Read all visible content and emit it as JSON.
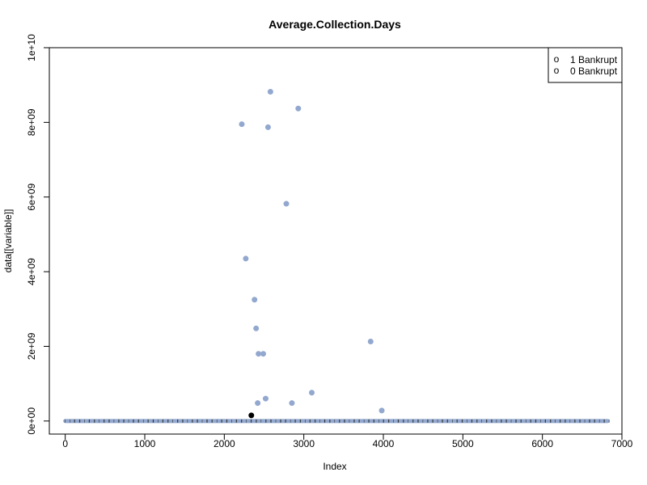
{
  "chart_data": {
    "type": "scatter",
    "title": "Average.Collection.Days",
    "xlabel": "Index",
    "ylabel": "data[[variable]]",
    "xlim": [
      -200,
      7000
    ],
    "ylim": [
      -350000000,
      10000000000
    ],
    "x_ticks": [
      0,
      1000,
      2000,
      3000,
      4000,
      5000,
      6000,
      7000
    ],
    "x_tick_labels": [
      "0",
      "1000",
      "2000",
      "3000",
      "4000",
      "5000",
      "6000",
      "7000"
    ],
    "y_ticks": [
      0,
      2000000000,
      4000000000,
      6000000000,
      8000000000,
      10000000000
    ],
    "y_tick_labels": [
      "0e+00",
      "2e+09",
      "4e+09",
      "6e+09",
      "8e+09",
      "1e+10"
    ],
    "grid": false,
    "legend_position": "top-right",
    "legend_symbol": "o",
    "series": [
      {
        "name": "0 Bankrupt",
        "color": "#92a8cf",
        "baseline_range": [
          0,
          6820
        ],
        "baseline_value": 0,
        "points": [
          {
            "x": 2220,
            "y": 7950000000
          },
          {
            "x": 2270,
            "y": 4350000000
          },
          {
            "x": 2380,
            "y": 3250000000
          },
          {
            "x": 2400,
            "y": 2480000000
          },
          {
            "x": 2430,
            "y": 1800000000
          },
          {
            "x": 2490,
            "y": 1800000000
          },
          {
            "x": 2420,
            "y": 480000000
          },
          {
            "x": 2520,
            "y": 600000000
          },
          {
            "x": 2550,
            "y": 7870000000
          },
          {
            "x": 2580,
            "y": 8820000000
          },
          {
            "x": 2780,
            "y": 5820000000
          },
          {
            "x": 2850,
            "y": 480000000
          },
          {
            "x": 2930,
            "y": 8370000000
          },
          {
            "x": 3100,
            "y": 760000000
          },
          {
            "x": 3840,
            "y": 2130000000
          },
          {
            "x": 3980,
            "y": 280000000
          }
        ]
      },
      {
        "name": "1 Bankrupt",
        "color": "#000000",
        "points": [
          {
            "x": 2340,
            "y": 150000000
          }
        ]
      }
    ]
  }
}
